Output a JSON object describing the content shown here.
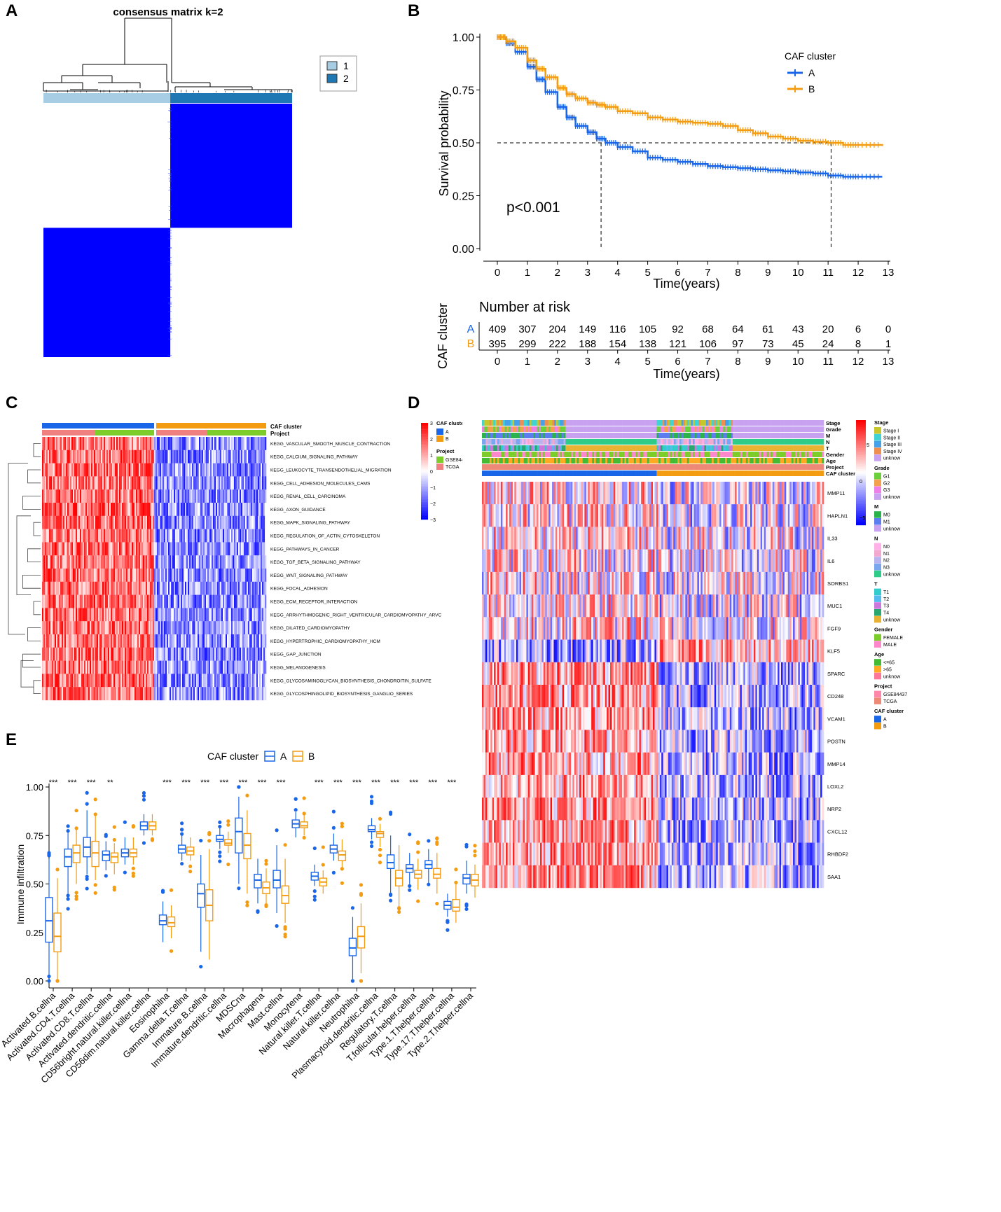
{
  "panels": {
    "A": "A",
    "B": "B",
    "C": "C",
    "D": "D",
    "E": "E"
  },
  "chart_data": [
    {
      "id": "A",
      "type": "heatmap",
      "title": "consensus matrix k=2",
      "legend": [
        "1",
        "2"
      ],
      "colors": {
        "cluster1": "#a6cde3",
        "cluster2": "#1f78b4",
        "fill": "#0000ff"
      },
      "blocks": [
        {
          "cluster": "1",
          "fraction": 0.51
        },
        {
          "cluster": "2",
          "fraction": 0.49
        }
      ]
    },
    {
      "id": "B",
      "type": "line",
      "subtype": "kaplan-meier",
      "xlabel": "Time(years)",
      "ylabel": "Survival probability",
      "xlim": [
        0,
        13
      ],
      "ylim": [
        0,
        1
      ],
      "xticks": [
        "0",
        "1",
        "2",
        "3",
        "4",
        "5",
        "6",
        "7",
        "8",
        "9",
        "10",
        "11",
        "12",
        "13"
      ],
      "yticks": [
        "0.00",
        "0.25",
        "0.50",
        "0.75",
        "1.00"
      ],
      "legend_title": "CAF cluster",
      "pvalue": "p<0.001",
      "median_lines": [
        3.45,
        11.1
      ],
      "series": [
        {
          "name": "A",
          "color": "#1a66e8",
          "x": [
            0,
            0.3,
            0.6,
            1,
            1.3,
            1.6,
            2,
            2.3,
            2.6,
            3,
            3.3,
            3.6,
            4,
            4.5,
            5,
            5.5,
            6,
            6.5,
            7,
            7.5,
            8,
            8.5,
            9,
            9.5,
            10,
            10.5,
            11,
            11.5,
            12,
            12.8
          ],
          "y": [
            1,
            0.97,
            0.93,
            0.86,
            0.8,
            0.74,
            0.67,
            0.62,
            0.58,
            0.55,
            0.52,
            0.5,
            0.48,
            0.46,
            0.43,
            0.42,
            0.41,
            0.4,
            0.39,
            0.385,
            0.38,
            0.375,
            0.37,
            0.365,
            0.36,
            0.355,
            0.345,
            0.34,
            0.34,
            0.34
          ]
        },
        {
          "name": "B",
          "color": "#f39c12",
          "x": [
            0,
            0.3,
            0.6,
            1,
            1.3,
            1.6,
            2,
            2.3,
            2.6,
            3,
            3.3,
            3.6,
            4,
            4.5,
            5,
            5.5,
            6,
            6.5,
            7,
            7.5,
            8,
            8.5,
            9,
            9.5,
            10,
            10.5,
            11,
            11.5,
            12,
            12.8
          ],
          "y": [
            1,
            0.98,
            0.95,
            0.89,
            0.85,
            0.81,
            0.76,
            0.73,
            0.71,
            0.69,
            0.68,
            0.67,
            0.65,
            0.64,
            0.62,
            0.61,
            0.6,
            0.595,
            0.59,
            0.58,
            0.56,
            0.545,
            0.53,
            0.52,
            0.51,
            0.505,
            0.5,
            0.49,
            0.49,
            0.485
          ]
        }
      ],
      "risk_table": {
        "title": "Number at risk",
        "ylabel": "CAF cluster",
        "xlabel": "Time(years)",
        "rows": [
          {
            "name": "A",
            "values": [
              "409",
              "307",
              "204",
              "149",
              "116",
              "105",
              "92",
              "68",
              "64",
              "61",
              "43",
              "20",
              "6",
              "0"
            ]
          },
          {
            "name": "B",
            "values": [
              "395",
              "299",
              "222",
              "188",
              "154",
              "138",
              "121",
              "106",
              "97",
              "73",
              "45",
              "24",
              "8",
              "1"
            ]
          }
        ]
      }
    },
    {
      "id": "C",
      "type": "heatmap",
      "annotation_rows": [
        "CAF cluster",
        "Project"
      ],
      "rows": [
        "KEGG_VASCULAR_SMOOTH_MUSCLE_CONTRACTION",
        "KEGG_CALCIUM_SIGNALING_PATHWAY",
        "KEGG_LEUKOCYTE_TRANSENDOTHELIAL_MIGRATION",
        "KEGG_CELL_ADHESION_MOLECULES_CAMS",
        "KEGG_RENAL_CELL_CARCINOMA",
        "KEGG_AXON_GUIDANCE",
        "KEGG_MAPK_SIGNALING_PATHWAY",
        "KEGG_REGULATION_OF_ACTIN_CYTOSKELETON",
        "KEGG_PATHWAYS_IN_CANCER",
        "KEGG_TGF_BETA_SIGNALING_PATHWAY",
        "KEGG_WNT_SIGNALING_PATHWAY",
        "KEGG_FOCAL_ADHESION",
        "KEGG_ECM_RECEPTOR_INTERACTION",
        "KEGG_ARRHYTHMOGENIC_RIGHT_VENTRICULAR_CARDIOMYOPATHY_ARVC",
        "KEGG_DILATED_CARDIOMYOPATHY",
        "KEGG_HYPERTROPHIC_CARDIOMYOPATHY_HCM",
        "KEGG_GAP_JUNCTION",
        "KEGG_MELANOGENESIS",
        "KEGG_GLYCOSAMINOGLYCAN_BIOSYNTHESIS_CHONDROITIN_SULFATE",
        "KEGG_GLYCOSPHINGOLIPID_BIOSYNTHESIS_GANGLIO_SERIES"
      ],
      "scale_ticks": [
        "3",
        "2",
        "1",
        "0",
        "−1",
        "−2",
        "−3"
      ],
      "legend": {
        "caf_title": "CAF cluster",
        "caf_items": [
          "A",
          "B"
        ],
        "project_title": "Project",
        "project_items": [
          "GSE84437",
          "TCGA"
        ]
      }
    },
    {
      "id": "D",
      "type": "heatmap",
      "annotation_rows": [
        "Stage",
        "Grade",
        "M",
        "N",
        "T",
        "Gender",
        "Age",
        "Project",
        "CAF cluster"
      ],
      "rows": [
        "MMP11",
        "HAPLN1",
        "IL33",
        "IL6",
        "SORBS1",
        "MUC1",
        "FGF9",
        "KLF5",
        "SPARC",
        "CD248",
        "VCAM1",
        "POSTN",
        "MMP14",
        "LOXL2",
        "NRP2",
        "CXCL12",
        "RHBDF2",
        "SAA1"
      ],
      "row_bias": [
        1,
        1,
        1,
        1,
        1,
        1,
        1,
        -1,
        1,
        1,
        1,
        1,
        1,
        1,
        1,
        1,
        1,
        1
      ],
      "scale_ticks": [
        "5",
        "0",
        "−5"
      ],
      "legend_groups": [
        {
          "title": "Stage",
          "items": [
            "Stage I",
            "Stage II",
            "Stage III",
            "Stage IV",
            "unknow"
          ]
        },
        {
          "title": "Grade",
          "items": [
            "G1",
            "G2",
            "G3",
            "unknow"
          ]
        },
        {
          "title": "M",
          "items": [
            "M0",
            "M1",
            "unknow"
          ]
        },
        {
          "title": "N",
          "items": [
            "N0",
            "N1",
            "N2",
            "N3",
            "unknow"
          ]
        },
        {
          "title": "T",
          "items": [
            "T1",
            "T2",
            "T3",
            "T4",
            "unknow"
          ]
        },
        {
          "title": "Gender",
          "items": [
            "FEMALE",
            "MALE"
          ]
        },
        {
          "title": "Age",
          "items": [
            "<=65",
            ">65",
            "unknow"
          ]
        },
        {
          "title": "Project",
          "items": [
            "GSE84437",
            "TCGA"
          ]
        },
        {
          "title": "CAF cluster",
          "items": [
            "A",
            "B"
          ]
        }
      ]
    },
    {
      "id": "E",
      "type": "boxplot",
      "legend_title": "CAF cluster",
      "series_names": [
        "A",
        "B"
      ],
      "colors": {
        "A": "#1a66e8",
        "B": "#f39c12"
      },
      "ylabel": "Immune infiltration",
      "ylim": [
        0,
        1
      ],
      "yticks": [
        "0.00",
        "0.25",
        "0.50",
        "0.75",
        "1.00"
      ],
      "categories": [
        "Activated.B.cellna",
        "Activated.CD4.T.cellna",
        "Activated.CD8.T.cellna",
        "Activated.dendritic.cellna",
        "CD56bright.natural.killer.cellna",
        "CD56dim.natural.killer.cellna",
        "Eosinophilna",
        "Gamma.delta.T.cellna",
        "Immature.B.cellna",
        "Immature.dendritic.cellna",
        "MDSCna",
        "Macrophagena",
        "Mast.cellna",
        "Monocytena",
        "Natural.killer.T.cellna",
        "Natural.killer.cellna",
        "Neutrophilna",
        "Plasmacytoid.dendritic.cellna",
        "Regulatory.T.cellna",
        "T.follicular.helper.cellna",
        "Type.1.T.helper.cellna",
        "Type.17.T.helper.cellna",
        "Type.2.T.helper.cellna"
      ],
      "significance": [
        "***",
        "***",
        "***",
        "**",
        "",
        "",
        "***",
        "***",
        "***",
        "***",
        "***",
        "***",
        "***",
        "",
        "***",
        "***",
        "***",
        "***",
        "***",
        "***",
        "***",
        "***",
        ""
      ],
      "boxes_A": [
        [
          0.03,
          0.2,
          0.31,
          0.43,
          0.63
        ],
        [
          0.45,
          0.59,
          0.64,
          0.68,
          0.77
        ],
        [
          0.55,
          0.64,
          0.69,
          0.74,
          0.88
        ],
        [
          0.57,
          0.62,
          0.65,
          0.67,
          0.72
        ],
        [
          0.6,
          0.64,
          0.66,
          0.68,
          0.74
        ],
        [
          0.75,
          0.78,
          0.8,
          0.82,
          0.86
        ],
        [
          0.2,
          0.29,
          0.31,
          0.34,
          0.41
        ],
        [
          0.62,
          0.66,
          0.68,
          0.7,
          0.75
        ],
        [
          0.15,
          0.38,
          0.45,
          0.5,
          0.65
        ],
        [
          0.68,
          0.72,
          0.73,
          0.75,
          0.79
        ],
        [
          0.5,
          0.66,
          0.77,
          0.84,
          0.95
        ],
        [
          0.4,
          0.48,
          0.52,
          0.55,
          0.63
        ],
        [
          0.35,
          0.48,
          0.52,
          0.57,
          0.7
        ],
        [
          0.74,
          0.79,
          0.81,
          0.83,
          0.87
        ],
        [
          0.49,
          0.52,
          0.54,
          0.56,
          0.6
        ],
        [
          0.62,
          0.66,
          0.68,
          0.7,
          0.76
        ],
        [
          0.01,
          0.13,
          0.17,
          0.22,
          0.33
        ],
        [
          0.73,
          0.77,
          0.78,
          0.8,
          0.84
        ],
        [
          0.45,
          0.58,
          0.61,
          0.65,
          0.75
        ],
        [
          0.5,
          0.56,
          0.58,
          0.6,
          0.66
        ],
        [
          0.5,
          0.58,
          0.6,
          0.62,
          0.68
        ],
        [
          0.33,
          0.37,
          0.39,
          0.41,
          0.45
        ],
        [
          0.45,
          0.5,
          0.53,
          0.55,
          0.62
        ]
      ],
      "boxes_B": [
        [
          0.0,
          0.15,
          0.23,
          0.35,
          0.53
        ],
        [
          0.5,
          0.61,
          0.66,
          0.7,
          0.78
        ],
        [
          0.52,
          0.59,
          0.66,
          0.72,
          0.85
        ],
        [
          0.55,
          0.61,
          0.64,
          0.66,
          0.71
        ],
        [
          0.6,
          0.64,
          0.66,
          0.68,
          0.74
        ],
        [
          0.75,
          0.78,
          0.8,
          0.82,
          0.86
        ],
        [
          0.22,
          0.28,
          0.3,
          0.33,
          0.39
        ],
        [
          0.62,
          0.65,
          0.67,
          0.69,
          0.74
        ],
        [
          0.11,
          0.31,
          0.39,
          0.47,
          0.68
        ],
        [
          0.66,
          0.7,
          0.71,
          0.73,
          0.77
        ],
        [
          0.45,
          0.63,
          0.7,
          0.76,
          0.88
        ],
        [
          0.4,
          0.45,
          0.48,
          0.51,
          0.58
        ],
        [
          0.3,
          0.4,
          0.44,
          0.49,
          0.63
        ],
        [
          0.75,
          0.79,
          0.8,
          0.82,
          0.86
        ],
        [
          0.45,
          0.49,
          0.51,
          0.53,
          0.57
        ],
        [
          0.58,
          0.62,
          0.65,
          0.67,
          0.73
        ],
        [
          0.04,
          0.17,
          0.23,
          0.28,
          0.4
        ],
        [
          0.69,
          0.74,
          0.76,
          0.77,
          0.81
        ],
        [
          0.38,
          0.49,
          0.53,
          0.57,
          0.7
        ],
        [
          0.47,
          0.53,
          0.55,
          0.57,
          0.63
        ],
        [
          0.45,
          0.53,
          0.55,
          0.58,
          0.66
        ],
        [
          0.3,
          0.36,
          0.38,
          0.42,
          0.5
        ],
        [
          0.43,
          0.49,
          0.52,
          0.55,
          0.6
        ]
      ]
    }
  ]
}
